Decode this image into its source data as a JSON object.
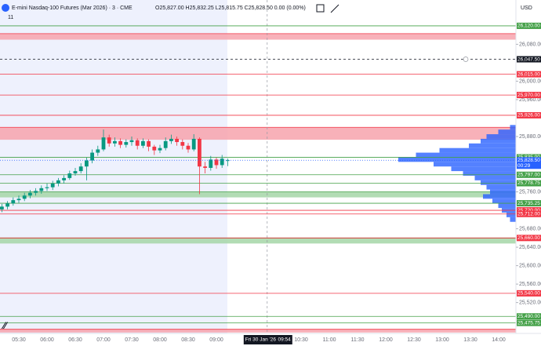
{
  "chart_data": {
    "type": "candlestick",
    "title": "E-mini Nasdaq-100 Futures (Mar 2026) · 3 · CME",
    "ohlc_label": "O25,827.00 H25,832.25 L25,815.75 C25,828.50 0.00 (0.00%)",
    "indicator_label": "11",
    "currency": "USD",
    "colors": {
      "up": "#089981",
      "down": "#f23645",
      "profile": "#2962ff"
    },
    "ylim": [
      25453,
      26176
    ],
    "yticks": [
      {
        "value": 26080,
        "label": "26,080.00"
      },
      {
        "value": 26000,
        "label": "26,000.00"
      },
      {
        "value": 25960,
        "label": "25,960.00"
      },
      {
        "value": 25880,
        "label": "25,880.00"
      },
      {
        "value": 25760,
        "label": "25,760.00"
      },
      {
        "value": 25680,
        "label": "25,680.00"
      },
      {
        "value": 25640,
        "label": "25,640.00"
      },
      {
        "value": 25600,
        "label": "25,600.00"
      },
      {
        "value": 25560,
        "label": "25,560.00"
      },
      {
        "value": 25520,
        "label": "25,520.00"
      }
    ],
    "xticks": [
      "05:30",
      "06:00",
      "06:30",
      "07:00",
      "07:30",
      "08:00",
      "08:30",
      "09:00",
      "10:30",
      "11:00",
      "11:30",
      "12:00",
      "12:30",
      "13:00",
      "13:30",
      "14:00"
    ],
    "x": [
      "05:12",
      "05:18",
      "05:24",
      "05:30",
      "05:36",
      "05:42",
      "05:48",
      "05:54",
      "06:00",
      "06:06",
      "06:12",
      "06:18",
      "06:24",
      "06:30",
      "06:36",
      "06:42",
      "06:48",
      "06:54",
      "07:00",
      "07:06",
      "07:12",
      "07:18",
      "07:24",
      "07:30",
      "07:36",
      "07:42",
      "07:48",
      "07:54",
      "08:00",
      "08:06",
      "08:12",
      "08:18",
      "08:24",
      "08:30",
      "08:36",
      "08:42",
      "08:48",
      "08:54",
      "09:00",
      "09:06",
      "09:12"
    ],
    "open": [
      25722,
      25728,
      25735,
      25742,
      25745,
      25752,
      25758,
      25762,
      25768,
      25770,
      25778,
      25785,
      25790,
      25800,
      25805,
      25815,
      25828,
      25845,
      25852,
      25878,
      25865,
      25870,
      25862,
      25868,
      25872,
      25860,
      25870,
      25858,
      25850,
      25855,
      25870,
      25875,
      25868,
      25860,
      25852,
      25875,
      25815,
      25812,
      25830,
      25818,
      25827
    ],
    "high": [
      25734,
      25740,
      25748,
      25752,
      25758,
      25764,
      25768,
      25774,
      25778,
      25784,
      25790,
      25796,
      25806,
      25812,
      25822,
      25834,
      25852,
      25860,
      25895,
      25884,
      25878,
      25876,
      25874,
      25880,
      25876,
      25876,
      25874,
      25862,
      25862,
      25878,
      25884,
      25880,
      25874,
      25866,
      25885,
      25878,
      25825,
      25838,
      25834,
      25840,
      25832.25
    ],
    "low": [
      25716,
      25722,
      25730,
      25736,
      25740,
      25746,
      25752,
      25756,
      25762,
      25764,
      25772,
      25778,
      25786,
      25795,
      25800,
      25785,
      25822,
      25838,
      25848,
      25858,
      25858,
      25855,
      25856,
      25860,
      25852,
      25855,
      25848,
      25840,
      25844,
      25850,
      25864,
      25860,
      25852,
      25845,
      25848,
      25755,
      25800,
      25806,
      25810,
      25812,
      25815.75
    ],
    "close": [
      25728,
      25735,
      25742,
      25745,
      25752,
      25758,
      25762,
      25768,
      25770,
      25778,
      25785,
      25790,
      25800,
      25805,
      25815,
      25828,
      25845,
      25852,
      25878,
      25865,
      25870,
      25862,
      25868,
      25872,
      25860,
      25870,
      25858,
      25850,
      25855,
      25870,
      25875,
      25868,
      25860,
      25852,
      25875,
      25815,
      25812,
      25830,
      25818,
      25832,
      25828.5
    ],
    "zones": [
      {
        "from": 26103,
        "to": 26090,
        "color": "#f7a3ad"
      },
      {
        "from": 25900,
        "to": 25873,
        "color": "#f7a3ad"
      },
      {
        "from": 25760,
        "to": 25748,
        "color": "#a5d6a7"
      },
      {
        "from": 25660,
        "to": 25648,
        "color": "#a5d6a7"
      },
      {
        "from": 25462,
        "to": 25455,
        "color": "#f7a3ad"
      }
    ],
    "levels": [
      {
        "value": 26120,
        "label": "26,120.00",
        "color": "#43a047"
      },
      {
        "value": 26047.5,
        "label": "26,047.50",
        "color": "#131722",
        "dashed": true
      },
      {
        "value": 26015,
        "label": "26,015.00",
        "color": "#f23645"
      },
      {
        "value": 25970,
        "label": "25,970.00",
        "color": "#f23645"
      },
      {
        "value": 25926,
        "label": "25,926.00",
        "color": "#f23645"
      },
      {
        "value": 25835,
        "label": "25,835.00",
        "color": "#43a047"
      },
      {
        "value": 25797,
        "label": "25,797.00",
        "color": "#43a047"
      },
      {
        "value": 25778.75,
        "label": "25,778.75",
        "color": "#43a047"
      },
      {
        "value": 25735.25,
        "label": "25,735.25",
        "color": "#43a047"
      },
      {
        "value": 25720,
        "label": "25,720.00",
        "color": "#f23645"
      },
      {
        "value": 25712,
        "label": "25,712.00",
        "color": "#f23645"
      },
      {
        "value": 25660,
        "label": "25,660.00",
        "color": "#f23645"
      },
      {
        "value": 25540,
        "label": "25,540.00",
        "color": "#f23645"
      },
      {
        "value": 25490,
        "label": "25,490.00",
        "color": "#43a047"
      },
      {
        "value": 25475.75,
        "label": "25,475.75",
        "color": "#43a047"
      }
    ],
    "last_price": {
      "value": 25828.5,
      "label": "25,828.50",
      "countdown": "00:29",
      "color": "#2962ff"
    },
    "crosshair": {
      "time": "09:54",
      "date_label": "Fri 30 Jan '26"
    },
    "volume_profile": {
      "prices": [
        25700,
        25710,
        25720,
        25730,
        25740,
        25750,
        25760,
        25770,
        25780,
        25790,
        25800,
        25810,
        25820,
        25830,
        25840,
        25850,
        25860,
        25870,
        25880,
        25890,
        25900
      ],
      "values": [
        5,
        8,
        12,
        15,
        20,
        28,
        22,
        25,
        30,
        35,
        45,
        55,
        70,
        100,
        85,
        65,
        40,
        30,
        25,
        15,
        5
      ]
    }
  }
}
